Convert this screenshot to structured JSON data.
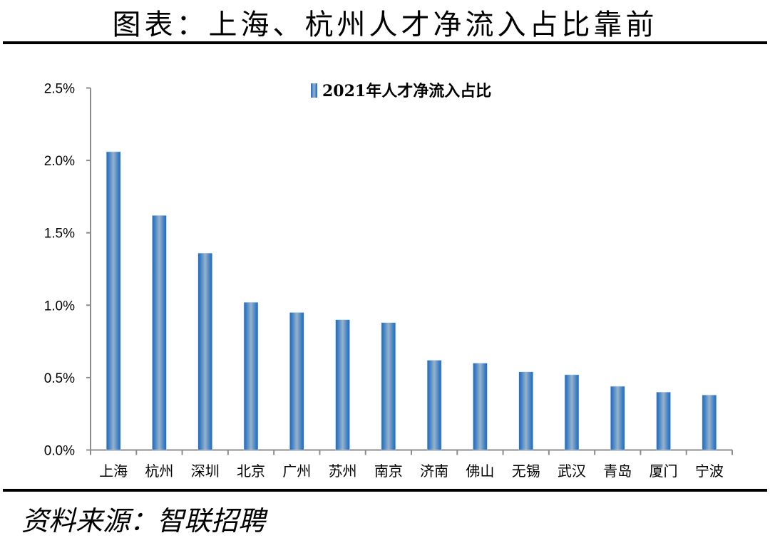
{
  "title": "图表：上海、杭州人才净流入占比靠前",
  "source": "资料来源：智联招聘",
  "chart_data": {
    "type": "bar",
    "title": "",
    "xlabel": "",
    "ylabel": "",
    "ylim": [
      0,
      2.5
    ],
    "yticks": [
      "0.0%",
      "0.5%",
      "1.0%",
      "1.5%",
      "2.0%",
      "2.5%"
    ],
    "grid": false,
    "legend_position": "top-center",
    "categories": [
      "上海",
      "杭州",
      "深圳",
      "北京",
      "广州",
      "苏州",
      "南京",
      "济南",
      "佛山",
      "无锡",
      "武汉",
      "青岛",
      "厦门",
      "宁波"
    ],
    "series": [
      {
        "name": "2021年人才净流入占比",
        "color": "#2e75c3",
        "values": [
          2.06,
          1.62,
          1.36,
          1.02,
          0.95,
          0.9,
          0.88,
          0.62,
          0.6,
          0.54,
          0.52,
          0.44,
          0.4,
          0.38
        ]
      }
    ]
  }
}
